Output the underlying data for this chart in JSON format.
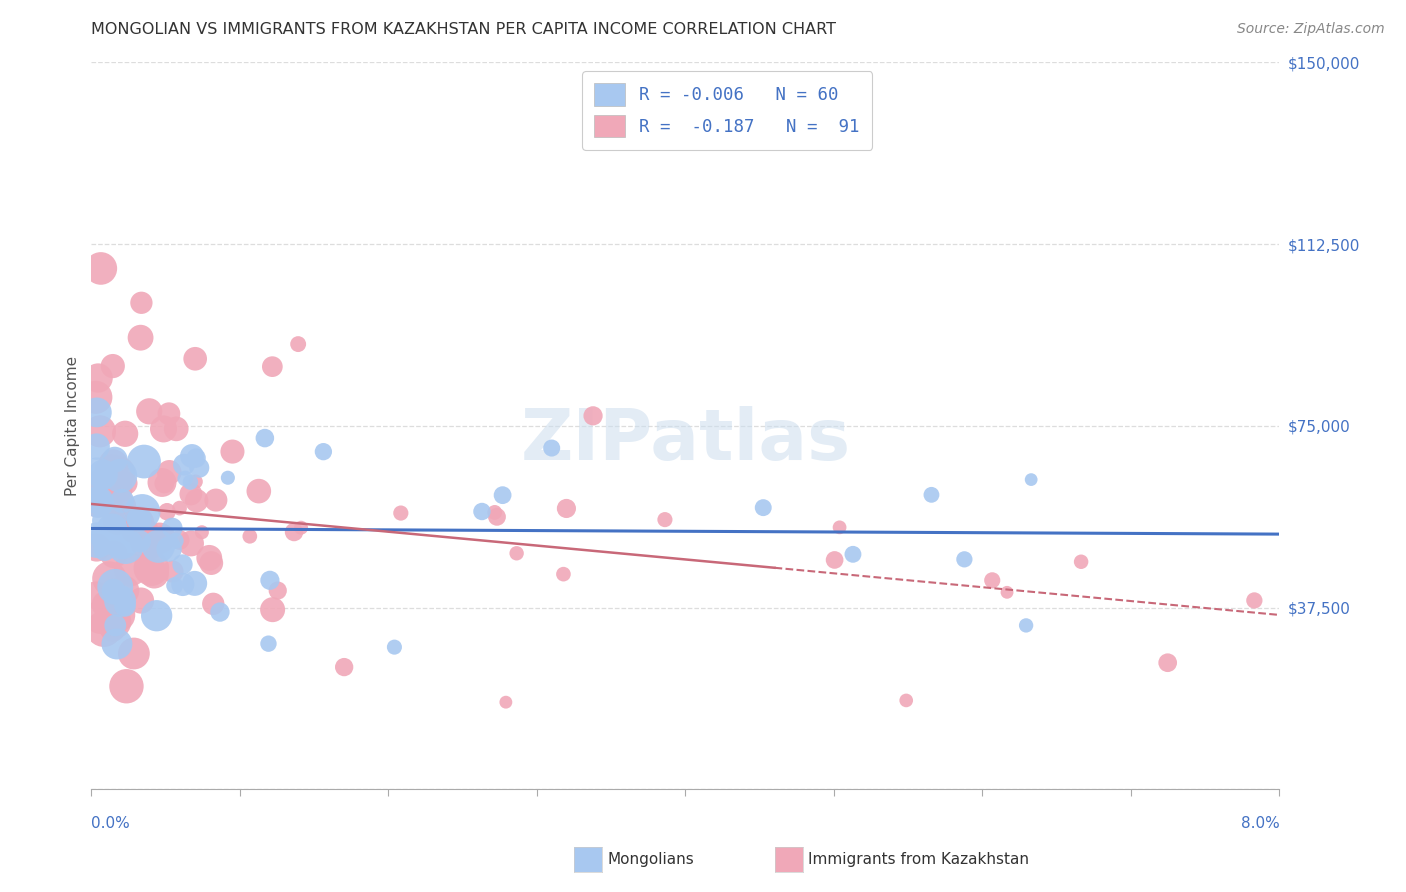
{
  "title": "MONGOLIAN VS IMMIGRANTS FROM KAZAKHSTAN PER CAPITA INCOME CORRELATION CHART",
  "source": "Source: ZipAtlas.com",
  "ylabel": "Per Capita Income",
  "watermark": "ZIPatlas",
  "mongolian_color": "#a8c8f0",
  "kaz_color": "#f0a8b8",
  "mongolian_line_color": "#4472c4",
  "kaz_line_color": "#c86878",
  "title_color": "#333333",
  "axis_color": "#4472c4",
  "background_color": "#ffffff",
  "grid_color": "#dddddd",
  "xlim": [
    0.0,
    0.08
  ],
  "ylim": [
    0,
    150000
  ],
  "ytick_vals": [
    0,
    37500,
    75000,
    112500,
    150000
  ],
  "ytick_labels": [
    "",
    "$37,500",
    "$75,000",
    "$112,500",
    "$150,000"
  ],
  "n_mongolians": 60,
  "n_kaz": 91,
  "mong_R": -0.006,
  "kaz_R": -0.187,
  "mong_line_intercept": 57000,
  "mong_line_slope": -5000,
  "kaz_line_intercept": 58000,
  "kaz_line_slope": -250000,
  "legend_line1": "R = -0.006   N = 60",
  "legend_line2": "R =  -0.187   N =  91"
}
